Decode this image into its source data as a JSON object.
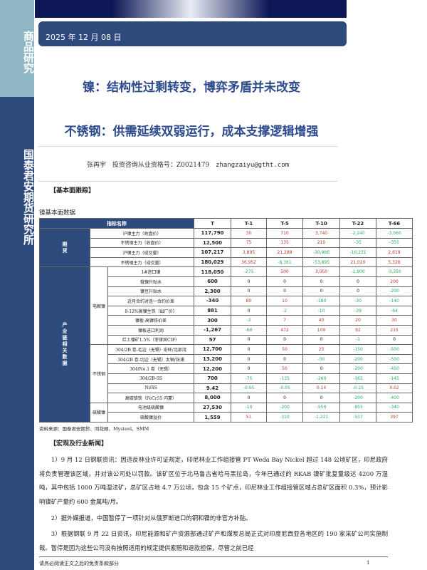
{
  "sidebar": {
    "top_label": "商品研究",
    "bottom_label": "国泰君安期货研究所"
  },
  "header": {
    "date": "2025 年 12 月 08 日"
  },
  "titles": {
    "nickel": "镍：结构性过剩转变，博弈矛盾并未改变",
    "stainless": "不锈钢：供需延续双弱运行，成本支撑逻辑增强"
  },
  "author": {
    "name": "张再宇",
    "license": "投资咨询从业资格号：Z0021479",
    "email": "zhangzaiyu@gtht.com"
  },
  "section1": "【基本面跟踪】",
  "table": {
    "caption": "镍基本面数据",
    "headers": [
      "指标名称",
      "T",
      "T-1",
      "T-5",
      "T-10",
      "T-22",
      "T-66"
    ],
    "groups": [
      {
        "label": "期货",
        "subgroups": [
          {
            "label": "",
            "rows": [
              {
                "name": "沪镍主力（收盘价）",
                "values": [
                  "117,790",
                  "30",
                  "710",
                  "3,740",
                  "-2,240",
                  "-3,060"
                ]
              },
              {
                "name": "不锈钢主力（收盘价）",
                "values": [
                  "12,500",
                  "75",
                  "135",
                  "210",
                  "-35",
                  "-355"
                ]
              },
              {
                "name": "沪镍主力（成交量）",
                "values": [
                  "107,217",
                  "3,895",
                  "21,288",
                  "-30,986",
                  "-16,231",
                  "2,619"
                ]
              },
              {
                "name": "不锈钢主力（成交量）",
                "values": [
                  "180,029",
                  "36,952",
                  "-8,361",
                  "-53,895",
                  "21,020",
                  "5,328"
                ]
              }
            ]
          }
        ]
      },
      {
        "label": "产业链相关数据",
        "subgroups": [
          {
            "label": "电解镍",
            "rows": [
              {
                "name": "1#进口镍",
                "values": [
                  "118,050",
                  "-275",
                  "500",
                  "3,050",
                  "-1,900",
                  "-3,350"
                ]
              },
              {
                "name": "俄镍升贴水",
                "values": [
                  "600",
                  "0",
                  "0",
                  "0",
                  "0",
                  "200"
                ]
              },
              {
                "name": "镍豆升贴水",
                "values": [
                  "2,300",
                  "0",
                  "0",
                  "0",
                  "0",
                  "-200"
                ]
              },
              {
                "name": "近月合约对连一合约价差",
                "values": [
                  "-340",
                  "80",
                  "10",
                  "-180",
                  "-30",
                  "-140"
                ]
              },
              {
                "name": "8-12%高镍生铁（出厂价）",
                "values": [
                  "881",
                  "0",
                  "-2",
                  "-10",
                  "-39",
                  "-64"
                ]
              },
              {
                "name": "镍板-高镍铁价差",
                "values": [
                  "300",
                  "-3",
                  "7",
                  "40",
                  "20",
                  "30"
                ]
              },
              {
                "name": "镍板进口利润",
                "values": [
                  "-1,267",
                  "-68",
                  "472",
                  "109",
                  "92",
                  "215"
                ]
              },
              {
                "name": "红土镍矿1.5%（菲律宾CIF）",
                "values": [
                  "57",
                  "0",
                  "0",
                  "0",
                  "-1",
                  "0"
                ]
              }
            ]
          },
          {
            "label": "不锈钢",
            "rows": [
              {
                "name": "304/2B 卷-毛边（无锡）宏旺/北部湾",
                "values": [
                  "12,700",
                  "0",
                  "50",
                  "25",
                  "-150",
                  "-500"
                ]
              },
              {
                "name": "304/2B 卷-切边（无锡）太钢/张浦",
                "values": [
                  "13,200",
                  "0",
                  "0",
                  "-50",
                  "-200",
                  "-500"
                ]
              },
              {
                "name": "304/No.1 卷（无锡）",
                "values": [
                  "12,200",
                  "0",
                  "50",
                  "0",
                  "-200",
                  "-450"
                ]
              },
              {
                "name": "304/2B-SS",
                "values": [
                  "700",
                  "-75",
                  "-135",
                  "-260",
                  "-165",
                  "-145"
                ]
              },
              {
                "name": "Ni/SS",
                "values": [
                  "9.42",
                  "-0.05",
                  "-0.05",
                  "0.14",
                  "-0.15",
                  "0.02"
                ]
              },
              {
                "name": "高碳铬铁（FeCr55 内蒙）",
                "values": [
                  "8,000",
                  "0",
                  "0",
                  "0",
                  "-200",
                  "-400"
                ]
              }
            ]
          },
          {
            "label": "硫酸镍",
            "rows": [
              {
                "name": "电池级硫酸镍",
                "values": [
                  "27,530",
                  "-10",
                  "-200",
                  "-550",
                  "-955",
                  "-340"
                ]
              },
              {
                "name": "硫酸镍溢价",
                "values": [
                  "1,559",
                  "51",
                  "-310",
                  "-1,221",
                  "-537",
                  "397"
                ]
              }
            ]
          }
        ]
      }
    ],
    "source": "资料来源：国泰君安期货、同花顺、Mysteel、SMM"
  },
  "colors": {
    "positive": "#c0392b",
    "negative": "#27ae60",
    "brand": "#2c4a7c"
  },
  "section2": "【宏观及行业新闻】",
  "news": [
    "1）9 月 12 日钢联资讯：因违反林业许可证规定，印尼林业工作组接管 PT Weda Bay Nickel 超过 148 公顷矿区，印尼政府将负责管理该区域，并对该公司处以罚款。该矿区位于北马鲁古省哈马黑拉岛，今年已通过的 RKAB 镍矿批复量级达 4200 万湿吨，其中包括 1000 万吨湿法矿，总矿区占地 4.7 万公顷，包含 15 个矿点，印尼林业工作组接管区域占总矿区面积 0.3%，预计影响镍矿产量约 600 金属吨/月。",
    "2）据外媒报道，中国暂停了一项针对从俄罗斯进口的铜和镍的非官方补贴。",
    "3）根据钢联 9 月 22 日资讯，印尼能源和矿产资源部通过矿产和煤炭总局正式对印度尼西亚各地区的 190 家采矿公司实施制裁。暂停是因为这些公司没有按照适用的规定提供索赔和退款担保，尽管之前已经"
  ],
  "footer": {
    "disclaimer": "请务必阅读正文之后的免责条款部分",
    "page": "1"
  }
}
